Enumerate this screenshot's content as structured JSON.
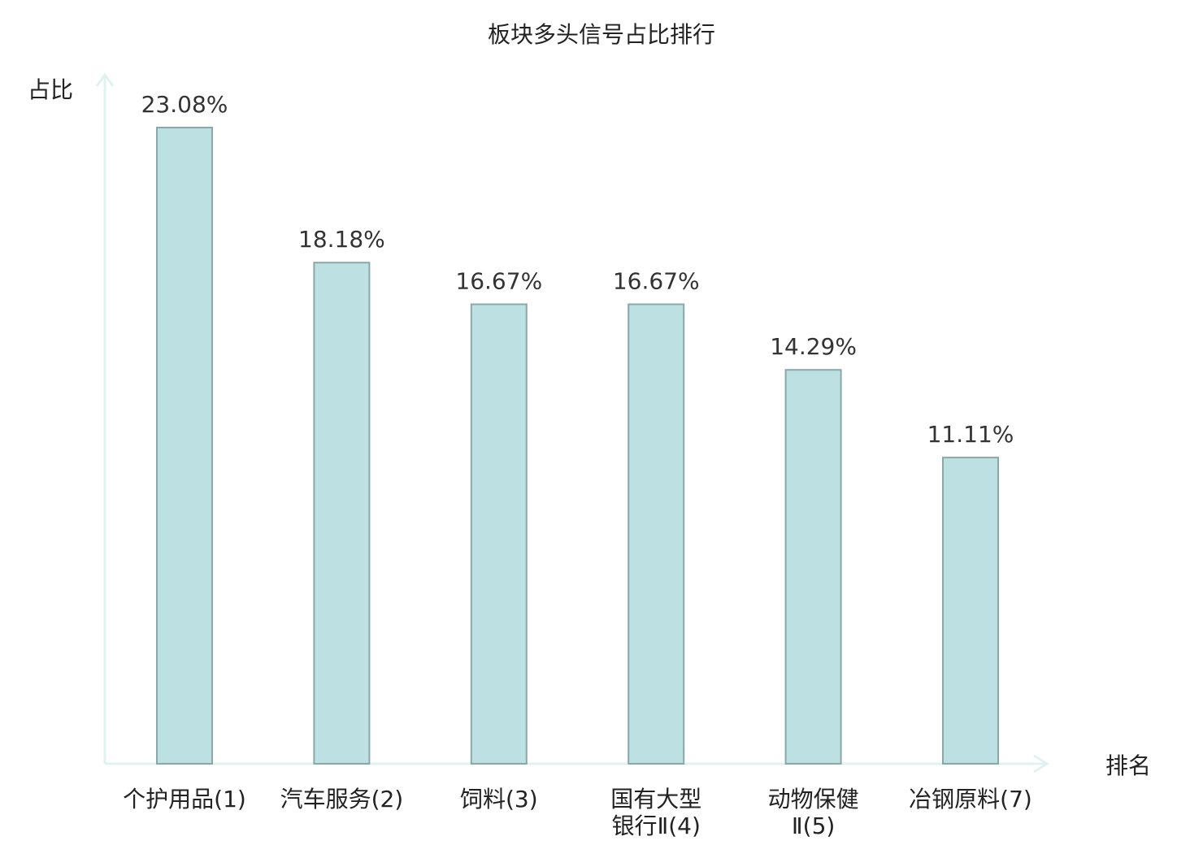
{
  "chart_data": {
    "type": "bar",
    "title": "板块多头信号占比排行",
    "ylabel": "占比",
    "xlabel": "排名",
    "ylim": [
      0,
      23.08
    ],
    "grid": false,
    "categories": [
      [
        "个护用品(1)"
      ],
      [
        "汽车服务(2)"
      ],
      [
        "饲料(3)"
      ],
      [
        "国有大型",
        "银行Ⅱ(4)"
      ],
      [
        "动物保健",
        "Ⅱ(5)"
      ],
      [
        "冶钢原料(7)"
      ]
    ],
    "values": [
      23.08,
      18.18,
      16.67,
      16.67,
      14.29,
      11.11
    ],
    "value_labels": [
      "23.08%",
      "18.18%",
      "16.67%",
      "16.67%",
      "14.29%",
      "11.11%"
    ],
    "highlight_index": 5,
    "colors": {
      "bar_fill": "#bde0e3",
      "bar_stroke": "#8aa8aa",
      "axis": "#e0f2f0",
      "highlight": "#e02020",
      "text": "#222222"
    }
  }
}
